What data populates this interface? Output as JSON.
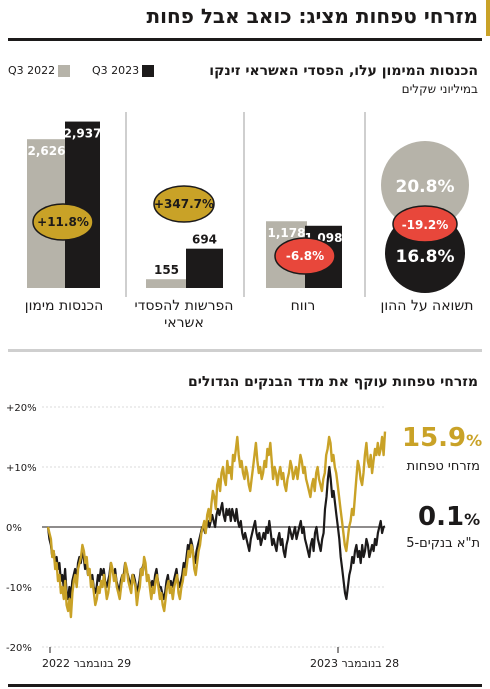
{
  "title": "מזרחי טפחות מציג: כואב אבל פחות",
  "colors": {
    "gold": "#c9a227",
    "dark": "#1c1a1a",
    "gray": "#b6b3a9",
    "red": "#e8473b",
    "rule": "#cfcfcf"
  },
  "panel1": {
    "subtitle": "הכנסות המימון עלו, הפסדי האשראי זינקו",
    "unit": "במיליוני שקלים",
    "legend": {
      "q3_2023": "Q3 2023",
      "q3_2022": "Q3 2022"
    }
  },
  "panel2": {
    "subtitle": "מזרחי טפחות עוקף את מדד הבנקים הגדולים",
    "series_labels": [
      {
        "value": "15.9",
        "pct": "%",
        "name": "מזרחי טפחות"
      },
      {
        "value": "0.1",
        "pct": "%",
        "name": "ת\"א בנקים-5"
      }
    ],
    "x_labels": {
      "start": "29 בנובמבר 2022",
      "end": "28 בנובמבר 2023"
    }
  },
  "chart_data": [
    {
      "type": "bar",
      "categories": [
        "הכנסות מימון",
        "הפרשות להפסדי אשראי",
        "רווח"
      ],
      "series": [
        {
          "name": "Q3 2022",
          "values": [
            2626,
            155,
            1178
          ],
          "labels": [
            "2,626",
            "155",
            "1,178"
          ]
        },
        {
          "name": "Q3 2023",
          "values": [
            2937,
            694,
            1098
          ],
          "labels": [
            "2,937",
            "694",
            "1,098"
          ]
        }
      ],
      "changes": [
        "+11.8%",
        "+347.7%",
        "-6.8%"
      ]
    },
    {
      "type": "bubble",
      "category": "תשואה על ההון",
      "series": [
        {
          "name": "Q3 2022",
          "value": 20.8,
          "label": "20.8%"
        },
        {
          "name": "Q3 2023",
          "value": 16.8,
          "label": "16.8%"
        }
      ],
      "change": "-19.2%"
    },
    {
      "type": "line",
      "y_ticks": [
        20,
        10,
        0,
        -10,
        -20
      ],
      "y_tick_labels": [
        "+20%",
        "+10%",
        "0%",
        "-10%",
        "-20%"
      ],
      "ylim": [
        -20,
        20
      ],
      "x_range": [
        0,
        250
      ],
      "series": [
        {
          "name": "מזרחי טפחות",
          "color": "#c9a227",
          "values": [
            0,
            -1,
            -2,
            -5,
            -4,
            -7,
            -6,
            -9,
            -8,
            -11,
            -10,
            -12,
            -9,
            -13,
            -14,
            -12,
            -15,
            -11,
            -9,
            -8,
            -10,
            -7,
            -6,
            -5,
            -3,
            -4,
            -6,
            -5,
            -8,
            -7,
            -10,
            -9,
            -11,
            -13,
            -12,
            -10,
            -11,
            -9,
            -10,
            -8,
            -10,
            -12,
            -11,
            -9,
            -6,
            -7,
            -9,
            -8,
            -10,
            -11,
            -12,
            -10,
            -8,
            -9,
            -6,
            -7,
            -9,
            -10,
            -11,
            -8,
            -9,
            -10,
            -13,
            -11,
            -10,
            -7,
            -8,
            -5,
            -6,
            -9,
            -8,
            -10,
            -12,
            -10,
            -11,
            -9,
            -8,
            -10,
            -12,
            -11,
            -13,
            -14,
            -12,
            -10,
            -9,
            -11,
            -10,
            -12,
            -10,
            -9,
            -8,
            -11,
            -12,
            -10,
            -9,
            -7,
            -8,
            -6,
            -4,
            -5,
            -3,
            -4,
            -7,
            -8,
            -6,
            -4,
            -3,
            -1,
            0,
            1,
            -1,
            2,
            3,
            1,
            4,
            6,
            5,
            3,
            7,
            8,
            6,
            9,
            10,
            8,
            7,
            11,
            9,
            10,
            8,
            12,
            11,
            13,
            15,
            12,
            10,
            11,
            9,
            8,
            10,
            9,
            7,
            6,
            8,
            10,
            12,
            14,
            11,
            9,
            10,
            8,
            9,
            11,
            10,
            13,
            12,
            14,
            11,
            8,
            10,
            9,
            7,
            9,
            10,
            8,
            9,
            7,
            6,
            8,
            9,
            11,
            10,
            8,
            9,
            10,
            8,
            10,
            12,
            11,
            9,
            10,
            8,
            7,
            6,
            5,
            7,
            8,
            6,
            9,
            10,
            8,
            7,
            6,
            8,
            9,
            12,
            13,
            15,
            14,
            11,
            12,
            10,
            9,
            7,
            5,
            3,
            1,
            -1,
            -3,
            -4,
            -2,
            0,
            1,
            3,
            2,
            5,
            8,
            11,
            10,
            8,
            7,
            9,
            12,
            14,
            11,
            10,
            12,
            9,
            11,
            13,
            12,
            14,
            12,
            13,
            15,
            12,
            15.9
          ]
        },
        {
          "name": "ת\"א בנקים-5",
          "color": "#1c1a1a",
          "values": [
            0,
            -2,
            -3,
            -5,
            -4,
            -6,
            -5,
            -7,
            -6,
            -9,
            -8,
            -10,
            -7,
            -11,
            -12,
            -10,
            -12,
            -9,
            -8,
            -7,
            -9,
            -6,
            -5,
            -6,
            -4,
            -5,
            -7,
            -6,
            -8,
            -7,
            -9,
            -8,
            -10,
            -11,
            -10,
            -8,
            -9,
            -7,
            -8,
            -7,
            -9,
            -10,
            -9,
            -8,
            -6,
            -7,
            -8,
            -7,
            -9,
            -10,
            -11,
            -9,
            -8,
            -8,
            -6,
            -7,
            -8,
            -9,
            -10,
            -8,
            -8,
            -9,
            -11,
            -10,
            -9,
            -7,
            -7,
            -6,
            -6,
            -8,
            -8,
            -9,
            -10,
            -9,
            -10,
            -8,
            -7,
            -9,
            -10,
            -10,
            -11,
            -12,
            -11,
            -9,
            -8,
            -10,
            -9,
            -10,
            -9,
            -8,
            -7,
            -9,
            -10,
            -9,
            -8,
            -6,
            -7,
            -5,
            -3,
            -4,
            -2,
            -3,
            -5,
            -6,
            -4,
            -3,
            -2,
            -1,
            0,
            0,
            -1,
            0,
            1,
            0,
            1,
            2,
            1,
            0,
            2,
            3,
            2,
            3,
            4,
            2,
            1,
            3,
            2,
            3,
            1,
            3,
            2,
            1,
            3,
            1,
            0,
            1,
            -1,
            -2,
            -1,
            -2,
            -3,
            -4,
            -2,
            -1,
            0,
            1,
            -1,
            -2,
            -1,
            -3,
            -2,
            -1,
            -2,
            0,
            -1,
            1,
            -1,
            -3,
            -2,
            -3,
            -4,
            -2,
            -1,
            -3,
            -2,
            -4,
            -5,
            -3,
            -2,
            0,
            -1,
            -2,
            -1,
            0,
            -2,
            -1,
            0,
            1,
            -1,
            0,
            -2,
            -3,
            -4,
            -5,
            -3,
            -2,
            -4,
            -1,
            0,
            -2,
            -3,
            -4,
            -2,
            -1,
            3,
            5,
            8,
            10,
            8,
            5,
            6,
            4,
            2,
            0,
            -2,
            -5,
            -7,
            -9,
            -11,
            -12,
            -10,
            -8,
            -7,
            -5,
            -6,
            -4,
            -3,
            -5,
            -4,
            -6,
            -3,
            -5,
            -4,
            -2,
            -3,
            -5,
            -4,
            -3,
            -4,
            -2,
            -3,
            -1,
            0,
            1,
            -1,
            0,
            0.1
          ]
        }
      ]
    }
  ]
}
